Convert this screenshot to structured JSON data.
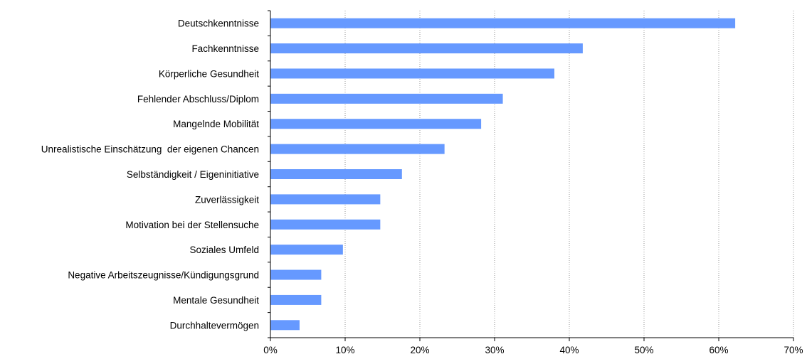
{
  "chart_data": {
    "type": "bar",
    "orientation": "horizontal",
    "title": "",
    "xlabel": "",
    "ylabel": "",
    "categories": [
      "Deutschkenntnisse",
      "Fachkenntnisse",
      "Körperliche Gesundheit",
      "Fehlender Abschluss/Diplom",
      "Mangelnde Mobilität",
      "Unrealistische Einschätzung  der eigenen Chancen",
      "Selbständigkeit / Eigeninitiative",
      "Zuverlässigkeit",
      "Motivation bei der Stellensuche",
      "Soziales Umfeld",
      "Negative Arbeitszeugnisse/Kündigungsgrund",
      "Mentale Gesundheit",
      "Durchhaltevermögen"
    ],
    "values": [
      62.2,
      41.8,
      38.0,
      31.1,
      28.2,
      23.3,
      17.6,
      14.7,
      14.7,
      9.7,
      6.8,
      6.8,
      3.9
    ],
    "xlim": [
      0,
      70
    ],
    "x_ticks": [
      0,
      10,
      20,
      30,
      40,
      50,
      60,
      70
    ],
    "x_tick_labels": [
      "0%",
      "10%",
      "20%",
      "30%",
      "40%",
      "50%",
      "60%",
      "70%"
    ],
    "grid": true,
    "legend": "none",
    "colors": {
      "bar": "#6699ff",
      "grid": "#9a9a9a",
      "axis": "#000000"
    }
  }
}
